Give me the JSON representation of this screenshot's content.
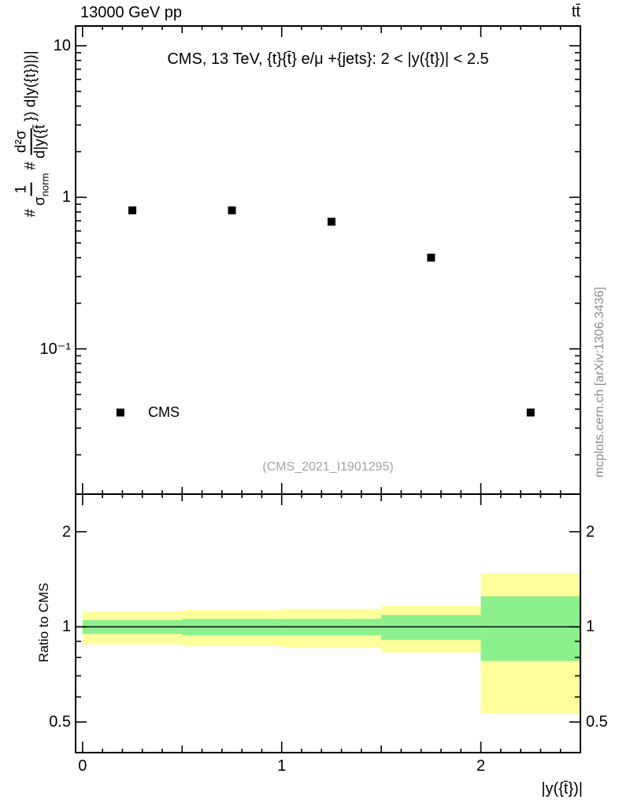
{
  "header": {
    "left": "13000 GeV pp",
    "right": "tt̄"
  },
  "side_note": "mcplots.cern.ch [arXiv:1306.3436]",
  "chart_data": {
    "type": "scatter",
    "title": "CMS, 13 TeV, {t}{t̄} e/μ +{jets}: 2 < |y({t})| < 2.5",
    "watermark": "(CMS_2021_I1901295)",
    "xlabel": "|y({t̄})|",
    "legend": {
      "label": "CMS",
      "marker_x": 0.19,
      "marker_y": 0.038
    },
    "ylabel_parts": {
      "prefix": "#",
      "frac1_num": "1",
      "frac1_den_base": "σ",
      "frac1_den_sub": "norm",
      "mid": "#",
      "frac2_num": "d²σ",
      "frac2_den": "d|y({t̄",
      "suffix": "}) d|y({t})|)|"
    },
    "x": {
      "lim": [
        -0.035,
        2.5
      ],
      "ticks": [
        {
          "value": 0,
          "label": "0"
        },
        {
          "value": 1,
          "label": "1"
        },
        {
          "value": 2,
          "label": "2"
        }
      ]
    },
    "main": {
      "yscale": "log",
      "ylim": [
        0.011,
        13.5
      ],
      "yticks": [
        {
          "value": 10,
          "label": "10"
        },
        {
          "value": 1,
          "label": "1"
        },
        {
          "value": 0.1,
          "label": "10⁻¹"
        }
      ],
      "points": {
        "x": [
          0.25,
          0.75,
          1.25,
          1.75,
          2.25
        ],
        "y": [
          0.82,
          0.82,
          0.69,
          0.4,
          0.038
        ]
      }
    },
    "ratio": {
      "ylabel": "Ratio to CMS",
      "yscale": "log",
      "ylim": [
        0.4,
        2.63
      ],
      "line_y": 1,
      "yticks": [
        {
          "value": 0.5,
          "label": "0.5"
        },
        {
          "value": 1,
          "label": "1"
        },
        {
          "value": 2,
          "label": "2"
        }
      ],
      "minor_ticks": [
        0.4,
        0.6,
        0.7,
        0.8,
        0.9
      ],
      "bins": [
        [
          0,
          0.5
        ],
        [
          0.5,
          1.0
        ],
        [
          1.0,
          1.5
        ],
        [
          1.5,
          2.0
        ],
        [
          2.0,
          2.5
        ]
      ],
      "yellow_band": [
        [
          0.88,
          1.12
        ],
        [
          0.87,
          1.13
        ],
        [
          0.86,
          1.14
        ],
        [
          0.83,
          1.17
        ],
        [
          0.53,
          1.48
        ]
      ],
      "green_band": [
        [
          0.95,
          1.05
        ],
        [
          0.94,
          1.06
        ],
        [
          0.94,
          1.06
        ],
        [
          0.91,
          1.09
        ],
        [
          0.78,
          1.25
        ]
      ]
    },
    "colors": {
      "yellow": "#ffff9c",
      "green": "#8cf08c",
      "marker": "#000000",
      "frame": "#000000"
    }
  }
}
